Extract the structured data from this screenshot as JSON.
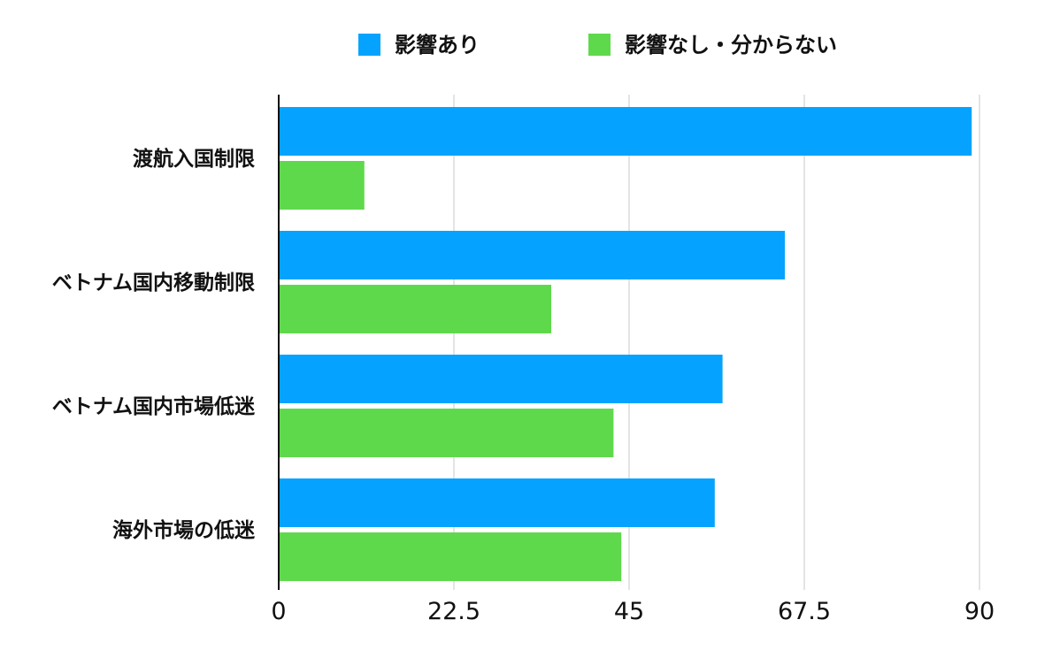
{
  "chart_data": {
    "type": "bar",
    "orientation": "horizontal",
    "title": "",
    "xlabel": "",
    "ylabel": "",
    "categories": [
      "渡航入国制限",
      "ベトナム国内移動制限",
      "ベトナム国内市場低迷",
      "海外市場の低迷"
    ],
    "series": [
      {
        "name": "影響あり",
        "color": "#05A3FF",
        "values": [
          89,
          65,
          57,
          56
        ]
      },
      {
        "name": "影響なし・分からない",
        "color": "#5FD94C",
        "values": [
          11,
          35,
          43,
          44
        ]
      }
    ],
    "xlim": [
      0,
      90
    ],
    "ticks": [
      0,
      22.5,
      45,
      67.5,
      90
    ],
    "tick_labels": [
      "0",
      "22.5",
      "45",
      "67.5",
      "90"
    ],
    "grid": true,
    "legend_position": "top-center"
  }
}
